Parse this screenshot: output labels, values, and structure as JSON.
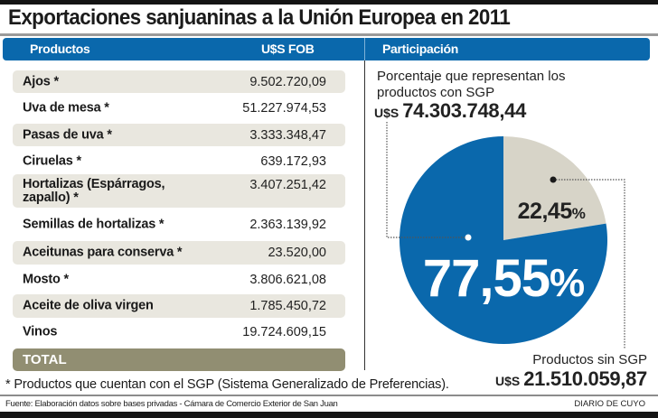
{
  "title": "Exportaciones sanjuaninas a la Unión Europea en 2011",
  "header": {
    "col_products": "Productos",
    "col_fob": "U$S FOB",
    "col_share": "Participación"
  },
  "table": {
    "rows": [
      {
        "product": "Ajos *",
        "fob": "9.502.720,09",
        "sgp": true
      },
      {
        "product": "Uva de mesa *",
        "fob": "51.227.974,53",
        "sgp": true
      },
      {
        "product": "Pasas de uva *",
        "fob": "3.333.348,47",
        "sgp": true
      },
      {
        "product": "Ciruelas *",
        "fob": "639.172,93",
        "sgp": true
      },
      {
        "product": "Hortalizas (Espárragos,",
        "product_line2": "zapallo) *",
        "fob": "3.407.251,42",
        "sgp": true
      },
      {
        "product": "Semillas de hortalizas *",
        "fob": "2.363.139,92",
        "sgp": true
      },
      {
        "product": "Aceitunas para conserva *",
        "fob": "23.520,00",
        "sgp": true
      },
      {
        "product": "Mosto *",
        "fob": "3.806.621,08",
        "sgp": true
      },
      {
        "product": "Aceite de oliva virgen",
        "fob": "1.785.450,72",
        "sgp": false
      },
      {
        "product": "Vinos",
        "fob": "19.724.609,15",
        "sgp": false
      }
    ],
    "total_label": "TOTAL"
  },
  "footnote": "* Productos que cuentan con el SGP (Sistema Generalizado de Preferencias).",
  "source": "Fuente: Elaboración datos sobre bases privadas - Cámara de Comercio Exterior de San Juan",
  "brand": "DIARIO DE CUYO",
  "participation": {
    "intro": "Porcentaje que representan los productos con SGP",
    "with_sgp_currency": "U$S",
    "with_sgp_amount": "74.303.748,44",
    "without_sgp_label": "Productos sin SGP",
    "without_sgp_currency": "U$S",
    "without_sgp_amount": "21.510.059,87"
  },
  "colors": {
    "brand_blue": "#0a68ac",
    "slice_gray": "#d7d4c8",
    "total_olive": "#918e72",
    "row_shade": "#e9e7df"
  },
  "chart_data": {
    "type": "pie",
    "title": "Participación",
    "slices": [
      {
        "name": "Productos con SGP",
        "value": 77.55,
        "label": "77,55%",
        "amount": "74.303.748,44",
        "color": "#0a68ac"
      },
      {
        "name": "Productos sin SGP",
        "value": 22.45,
        "label": "22,45%",
        "amount": "21.510.059,87",
        "color": "#d7d4c8"
      }
    ],
    "start": "12 o'clock, clockwise, smaller slice first",
    "unit": "%"
  }
}
